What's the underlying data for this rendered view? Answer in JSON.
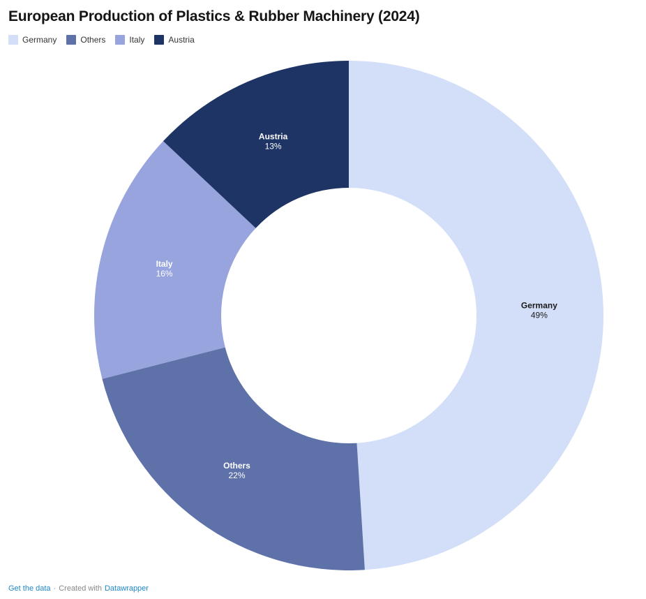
{
  "header": {
    "title": "European Production of Plastics & Rubber Machinery (2024)"
  },
  "chart_data": {
    "type": "pie",
    "subtype": "donut",
    "title": "European Production of Plastics & Rubber Machinery (2024)",
    "categories": [
      "Germany",
      "Others",
      "Italy",
      "Austria"
    ],
    "values": [
      49,
      22,
      16,
      13
    ],
    "unit": "%",
    "colors": [
      "#d3dff8",
      "#5e71a9",
      "#97a4dd",
      "#1e3464"
    ],
    "label_colors": [
      "#1a1a1a",
      "#ffffff",
      "#ffffff",
      "#ffffff"
    ],
    "start_angle_deg": 0,
    "direction": "clockwise",
    "inner_radius_ratio": 0.5,
    "legend_position": "top",
    "legend_entries": [
      "Germany",
      "Others",
      "Italy",
      "Austria"
    ]
  },
  "footer": {
    "get_data_label": "Get the data",
    "separator": "·",
    "created_with_label": "Created with",
    "datawrapper_label": "Datawrapper",
    "link_color": "#1e87c5",
    "text_color": "#888888"
  }
}
